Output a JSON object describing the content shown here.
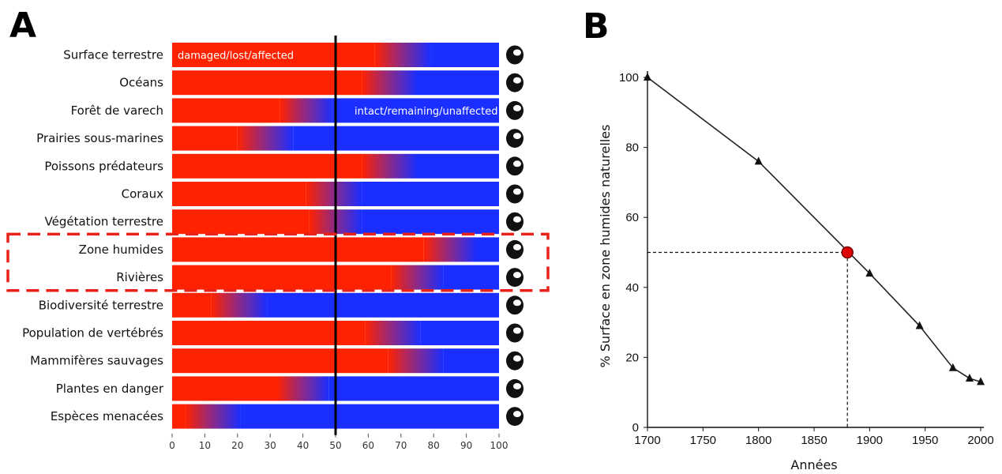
{
  "panels": {
    "a_label": "A",
    "b_label": "B"
  },
  "chart_data": [
    {
      "type": "bar",
      "orientation": "horizontal",
      "stacked": true,
      "categories": [
        "Surface terrestre",
        "Océans",
        "Forêt de varech",
        "Prairies sous-marines",
        "Poissons prédateurs",
        "Coraux",
        "Végétation terrestre",
        "Zone humides",
        "Rivières",
        "Biodiversité terrestre",
        "Population de vertébrés",
        "Mammifères sauvages",
        "Plantes en danger",
        "Espèces menacées"
      ],
      "series": [
        {
          "name": "damaged/lost/affected",
          "color": "#ff2200",
          "values": [
            62,
            58,
            33,
            20,
            58,
            41,
            42,
            77,
            67,
            12,
            59,
            66,
            32,
            4
          ]
        },
        {
          "name": "",
          "color": "#8a2a8a",
          "values": [
            17,
            17,
            16,
            17,
            17,
            17,
            16,
            16,
            16,
            17,
            17,
            17,
            16,
            17
          ]
        },
        {
          "name": "intact/remaining/unaffected",
          "color": "#1a2eff",
          "values": [
            21,
            25,
            51,
            63,
            25,
            42,
            42,
            7,
            17,
            71,
            24,
            17,
            52,
            79
          ]
        }
      ],
      "xlim": [
        0,
        100
      ],
      "xticks": [
        "0",
        "10",
        "20",
        "30",
        "40",
        "50",
        "60",
        "70",
        "80",
        "90",
        "100"
      ],
      "reference_line": 50,
      "highlighted": [
        "Zone humides",
        "Rivières"
      ],
      "icons": [
        "globe-icon",
        "wave-icon",
        "kelp-icon",
        "seagrass-icon",
        "swordfish-icon",
        "coral-icon",
        "tree-icon",
        "wetland-icon",
        "river-icon",
        "insects-icon",
        "snake-icon",
        "rhino-icon",
        "lotus-icon",
        "butterfly-icon"
      ]
    },
    {
      "type": "line",
      "series": [
        {
          "name": "",
          "x": [
            1700,
            1800,
            1900,
            1945,
            1975,
            1990,
            2000
          ],
          "y": [
            100,
            76,
            44,
            29,
            17,
            14,
            13
          ]
        }
      ],
      "highlight_point": {
        "x": 1880,
        "y": 50,
        "color": "#dd0000"
      },
      "xlabel": "Années",
      "ylabel": "% Surface en zone humides naturelles",
      "xlim": [
        1700,
        2000
      ],
      "ylim": [
        0,
        100
      ],
      "xticks": [
        "1700",
        "1750",
        "1800",
        "1850",
        "1900",
        "1950",
        "2000"
      ],
      "yticks": [
        "0",
        "20",
        "40",
        "60",
        "80",
        "100"
      ]
    }
  ]
}
